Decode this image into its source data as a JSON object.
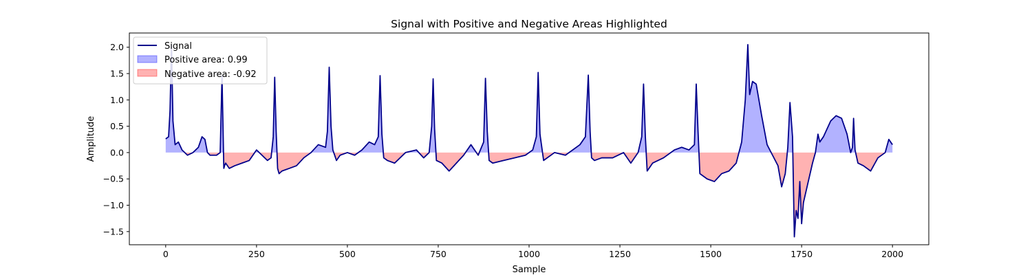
{
  "chart_data": {
    "type": "area",
    "title": "Signal with Positive and Negative Areas Highlighted",
    "xlabel": "Sample",
    "ylabel": "Amplitude",
    "xlim": [
      -100,
      2100
    ],
    "ylim": [
      -1.75,
      2.27
    ],
    "xticks": [
      0,
      250,
      500,
      750,
      1000,
      1250,
      1500,
      1750,
      2000
    ],
    "yticks": [
      -1.5,
      -1.0,
      -0.5,
      0.0,
      0.5,
      1.0,
      1.5,
      2.0
    ],
    "xtick_labels": [
      "0",
      "250",
      "500",
      "750",
      "1000",
      "1250",
      "1500",
      "1750",
      "2000"
    ],
    "ytick_labels": [
      "−1.5",
      "−1.0",
      "−0.5",
      "0.0",
      "0.5",
      "1.0",
      "1.5",
      "2.0"
    ],
    "grid": false,
    "legend_position": "top-left",
    "colors": {
      "signal": "#00008b",
      "positive_fill": "#0000ff",
      "negative_fill": "#ff0000",
      "fill_alpha": 0.3
    },
    "series": [
      {
        "name": "Signal",
        "x": [
          0,
          8,
          12,
          16,
          20,
          26,
          35,
          45,
          60,
          75,
          90,
          100,
          108,
          115,
          122,
          130,
          140,
          150,
          155,
          158,
          160,
          162,
          165,
          175,
          190,
          210,
          230,
          250,
          265,
          280,
          290,
          296,
          300,
          304,
          308,
          312,
          320,
          340,
          360,
          380,
          400,
          420,
          440,
          445,
          450,
          455,
          460,
          470,
          480,
          500,
          520,
          540,
          560,
          575,
          585,
          590,
          595,
          600,
          610,
          630,
          660,
          690,
          710,
          725,
          732,
          736,
          740,
          745,
          760,
          780,
          800,
          820,
          840,
          860,
          875,
          880,
          885,
          890,
          900,
          930,
          960,
          990,
          1010,
          1020,
          1025,
          1030,
          1040,
          1070,
          1100,
          1120,
          1140,
          1155,
          1163,
          1168,
          1172,
          1180,
          1200,
          1230,
          1260,
          1280,
          1300,
          1310,
          1315,
          1320,
          1325,
          1340,
          1370,
          1400,
          1420,
          1440,
          1455,
          1460,
          1465,
          1470,
          1490,
          1510,
          1530,
          1550,
          1570,
          1585,
          1595,
          1602,
          1607,
          1615,
          1625,
          1640,
          1655,
          1670,
          1685,
          1695,
          1705,
          1712,
          1718,
          1725,
          1730,
          1735,
          1740,
          1745,
          1750,
          1755,
          1760,
          1770,
          1780,
          1788,
          1795,
          1800,
          1810,
          1820,
          1830,
          1845,
          1860,
          1875,
          1885,
          1890,
          1893,
          1897,
          1905,
          1920,
          1940,
          1960,
          1980,
          1990,
          2000
        ],
        "values": [
          0.26,
          0.3,
          0.8,
          2.05,
          0.6,
          0.15,
          0.2,
          0.05,
          -0.05,
          0.0,
          0.1,
          0.3,
          0.25,
          0.0,
          -0.05,
          -0.05,
          -0.05,
          0.0,
          1.45,
          0.4,
          -0.3,
          -0.25,
          -0.2,
          -0.3,
          -0.25,
          -0.2,
          -0.15,
          0.05,
          -0.05,
          -0.15,
          -0.1,
          0.3,
          1.43,
          0.4,
          -0.3,
          -0.4,
          -0.35,
          -0.3,
          -0.25,
          -0.1,
          0.0,
          0.15,
          0.1,
          0.4,
          1.62,
          0.5,
          0.05,
          -0.15,
          -0.05,
          0.0,
          -0.05,
          0.05,
          0.2,
          0.15,
          0.3,
          1.46,
          0.35,
          -0.1,
          -0.15,
          -0.2,
          0.0,
          0.05,
          -0.1,
          0.0,
          0.5,
          1.4,
          0.45,
          -0.15,
          -0.2,
          -0.35,
          -0.2,
          -0.05,
          0.15,
          -0.05,
          0.2,
          1.41,
          0.4,
          -0.15,
          -0.2,
          -0.15,
          -0.1,
          -0.05,
          0.05,
          0.3,
          1.52,
          0.35,
          -0.15,
          0.0,
          -0.05,
          0.05,
          0.15,
          0.3,
          1.47,
          0.4,
          -0.1,
          -0.15,
          -0.1,
          -0.1,
          0.0,
          -0.2,
          0.0,
          0.3,
          1.3,
          0.3,
          -0.35,
          -0.2,
          -0.1,
          0.05,
          0.1,
          0.05,
          0.15,
          1.3,
          0.4,
          -0.4,
          -0.5,
          -0.55,
          -0.4,
          -0.35,
          -0.2,
          0.2,
          1.0,
          2.05,
          1.1,
          1.35,
          1.3,
          0.7,
          0.15,
          -0.05,
          -0.25,
          -0.65,
          -0.4,
          0.1,
          0.95,
          0.3,
          -1.6,
          -1.1,
          -1.25,
          -0.55,
          -1.35,
          -0.95,
          -0.8,
          -0.5,
          -0.2,
          0.0,
          0.35,
          0.2,
          0.3,
          0.45,
          0.6,
          0.7,
          0.65,
          0.35,
          0.0,
          0.1,
          0.65,
          0.05,
          -0.2,
          -0.25,
          -0.35,
          -0.1,
          0.0,
          0.25,
          0.15
        ]
      }
    ],
    "legend": {
      "signal_label": "Signal",
      "positive_label": "Positive area: 0.99",
      "negative_label": "Negative area: -0.92"
    }
  }
}
